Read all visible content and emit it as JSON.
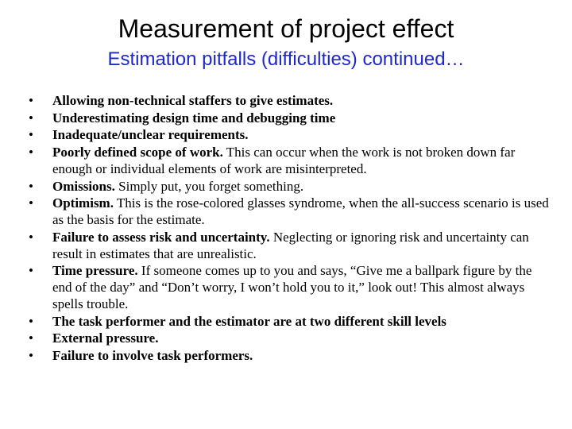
{
  "colors": {
    "background": "#ffffff",
    "title": "#000000",
    "subtitle": "#1f28c8",
    "body": "#000000"
  },
  "typography": {
    "title_font": "Arial",
    "title_size_pt": 32,
    "subtitle_font": "Arial",
    "subtitle_size_pt": 24,
    "body_font": "Times New Roman",
    "body_size_pt": 17,
    "line_height": 1.22
  },
  "title": "Measurement of project effect",
  "subtitle": "Estimation pitfalls  (difficulties) continued…",
  "items": [
    {
      "lead": "Allowing non-technical staffers to give estimates.",
      "rest": ""
    },
    {
      "lead": "Underestimating design time and debugging time",
      "rest": ""
    },
    {
      "lead": "Inadequate/unclear requirements.",
      "rest": ""
    },
    {
      "lead": "Poorly defined scope of work.",
      "rest": " This can occur when the work is not broken down far enough or individual elements of work are misinterpreted."
    },
    {
      "lead": "Omissions.",
      "rest": " Simply put, you forget something."
    },
    {
      "lead": "Optimism.",
      "rest": " This is the rose-colored glasses syndrome, when the all-success scenario is used as the basis for the estimate."
    },
    {
      "lead": "Failure to assess risk and uncertainty.",
      "rest": " Neglecting or ignoring risk and uncertainty can result in estimates that are unrealistic."
    },
    {
      "lead": "Time pressure.",
      "rest": " If someone comes up to you and says, “Give me a ballpark figure by the end of the day” and “Don’t worry, I won’t hold you to it,” look out! This almost always spells trouble."
    },
    {
      "lead": "The task performer and the estimator are at two different skill levels",
      "rest": ""
    },
    {
      "lead": "External pressure.",
      "rest": ""
    },
    {
      "lead": "Failure to involve task performers.",
      "rest": ""
    }
  ]
}
